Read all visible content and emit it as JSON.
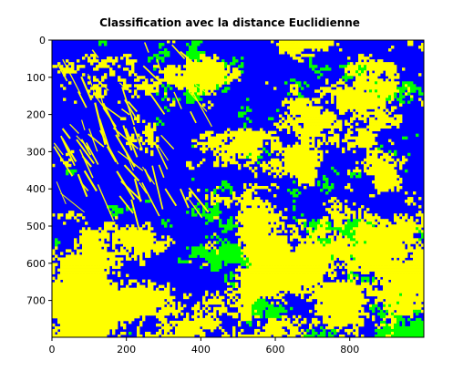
{
  "chart_data": {
    "type": "heatmap",
    "title": "Classification avec la distance Euclidienne",
    "xlabel": "",
    "ylabel": "",
    "xlim": [
      0,
      999
    ],
    "ylim": [
      799,
      0
    ],
    "x_ticks": [
      0,
      200,
      400,
      600,
      800
    ],
    "y_ticks": [
      0,
      100,
      200,
      300,
      400,
      500,
      600,
      700
    ],
    "x_tick_labels": [
      "0",
      "200",
      "400",
      "600",
      "800"
    ],
    "y_tick_labels": [
      "0",
      "100",
      "200",
      "300",
      "400",
      "500",
      "600",
      "700"
    ],
    "grid": false,
    "legend": "none",
    "classes": [
      {
        "color": "#0000ff"
      },
      {
        "color": "#ffff00"
      },
      {
        "color": "#00ff00"
      }
    ]
  }
}
